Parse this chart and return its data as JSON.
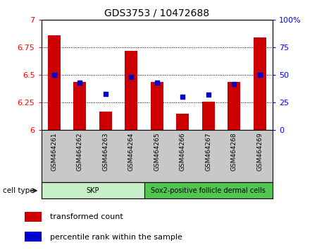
{
  "title": "GDS3753 / 10472688",
  "samples": [
    "GSM464261",
    "GSM464262",
    "GSM464263",
    "GSM464264",
    "GSM464265",
    "GSM464266",
    "GSM464267",
    "GSM464268",
    "GSM464269"
  ],
  "transformed_counts": [
    6.86,
    6.44,
    6.17,
    6.72,
    6.44,
    6.15,
    6.26,
    6.44,
    6.84
  ],
  "percentile_ranks": [
    50,
    43,
    33,
    48,
    43,
    30,
    32,
    42,
    50
  ],
  "ylim": [
    6.0,
    7.0
  ],
  "yticks_left": [
    6.0,
    6.25,
    6.5,
    6.75,
    7.0
  ],
  "ytick_labels_left": [
    "6",
    "6.25",
    "6.5",
    "6.75",
    "7"
  ],
  "ylim_right": [
    0,
    100
  ],
  "yticks_right": [
    0,
    25,
    50,
    75,
    100
  ],
  "ytick_labels_right": [
    "0",
    "25",
    "50",
    "75",
    "100%"
  ],
  "cell_groups": [
    {
      "label": "SKP",
      "start": 0,
      "end": 4,
      "color": "#c8f0c8"
    },
    {
      "label": "Sox2-positive follicle dermal cells",
      "start": 4,
      "end": 9,
      "color": "#50c850"
    }
  ],
  "cell_type_label": "cell type",
  "bar_color": "#CC0000",
  "dot_color": "#0000CC",
  "bar_width": 0.5,
  "bg_color": "#FFFFFF",
  "plot_bg": "#FFFFFF",
  "tick_area_bg": "#C8C8C8",
  "legend_items": [
    {
      "label": "transformed count",
      "color": "#CC0000"
    },
    {
      "label": "percentile rank within the sample",
      "color": "#0000CC"
    }
  ]
}
